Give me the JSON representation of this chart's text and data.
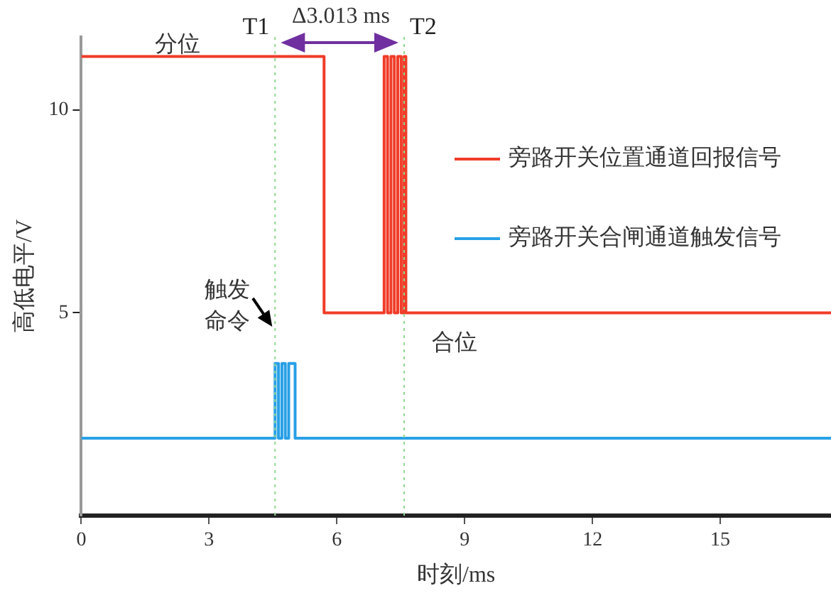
{
  "chart_data": {
    "type": "line",
    "xlabel": "时刻/ms",
    "ylabel": "高低电平/V",
    "xlim": [
      0,
      17.6
    ],
    "xticks": [
      0,
      3,
      6,
      9,
      12,
      15
    ],
    "ylim": [
      0,
      11.8
    ],
    "yticks": [
      5,
      10
    ],
    "grid": false,
    "legend": "top right",
    "marker": "none",
    "line_style": "solid",
    "series": [
      {
        "name": "旁路开关位置通道回报信号",
        "color": "#f03c28",
        "x": [
          0,
          5.7,
          5.7,
          7.11,
          7.11,
          7.19,
          7.19,
          7.27,
          7.27,
          7.35,
          7.35,
          7.43,
          7.43,
          7.51,
          7.51,
          7.58,
          7.58,
          7.62,
          7.62,
          17.6
        ],
        "values": [
          11.32,
          11.32,
          5,
          5,
          11.32,
          11.32,
          5,
          5,
          11.32,
          11.32,
          5,
          5,
          11.32,
          11.32,
          5,
          5,
          11.32,
          11.32,
          5,
          5
        ]
      },
      {
        "name": "旁路开关合闸通道触发信号",
        "color": "#28a0e6",
        "x": [
          0,
          4.55,
          4.55,
          4.63,
          4.63,
          4.71,
          4.71,
          4.79,
          4.79,
          4.87,
          4.87,
          5.02,
          5.02,
          17.6
        ],
        "values": [
          1.91,
          1.91,
          3.75,
          3.75,
          1.91,
          1.91,
          3.75,
          3.75,
          1.91,
          1.91,
          3.75,
          3.75,
          1.91,
          1.91
        ]
      }
    ],
    "ref_lines": [
      {
        "axis": "x",
        "value": 4.55,
        "label": "T1",
        "color": "#90d890",
        "line_style": "dotted"
      },
      {
        "axis": "x",
        "value": 7.58,
        "label": "T2",
        "color": "#90d890",
        "line_style": "dotted"
      }
    ],
    "annotations": [
      "分位",
      "合位",
      "触发命令",
      "Δ3.013 ms"
    ]
  }
}
